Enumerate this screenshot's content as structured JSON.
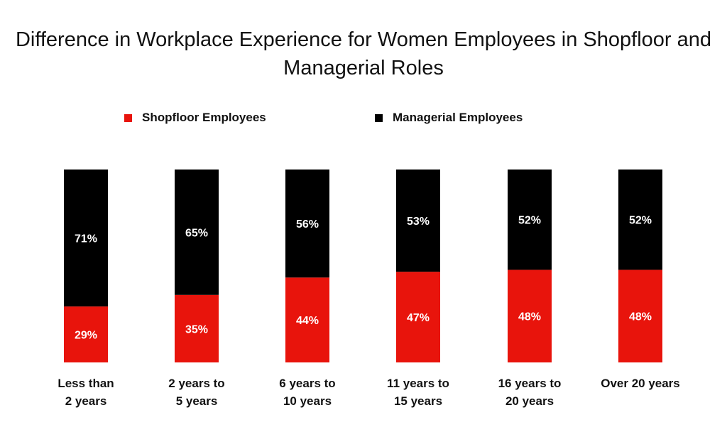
{
  "chart_data": {
    "type": "bar",
    "stacked": true,
    "title": "Difference in Workplace Experience for Women Employees in Shopfloor and Managerial Roles",
    "categories": [
      "Less than\n2 years",
      "2 years to\n5 years",
      "6 years to\n10 years",
      "11 years to\n15 years",
      "16 years to\n20 years",
      "Over 20 years"
    ],
    "series": [
      {
        "name": "Shopfloor Employees",
        "color": "#e8140c",
        "values": [
          29,
          35,
          44,
          47,
          48,
          48
        ],
        "labels": [
          "29%",
          "35%",
          "44%",
          "47%",
          "48%",
          "48%"
        ]
      },
      {
        "name": "Managerial Employees",
        "color": "#000000",
        "values": [
          71,
          65,
          56,
          53,
          52,
          52
        ],
        "labels": [
          "71%",
          "65%",
          "56%",
          "53%",
          "52%",
          "52%"
        ]
      }
    ],
    "ylim": [
      0,
      100
    ],
    "xlabel": "",
    "ylabel": "",
    "grid": false,
    "legend_position": "top"
  }
}
